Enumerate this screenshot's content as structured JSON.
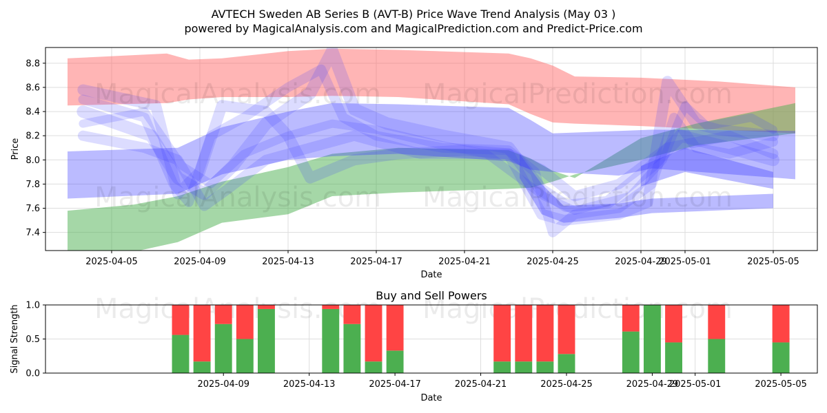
{
  "title_line1": "AVTECH Sweden AB Series B (AVT-B) Price Wave Trend Analysis (May 03 )",
  "title_line2": "powered by MagicalAnalysis.com and MagicalPrediction.com and Predict-Price.com",
  "watermarks": [
    "MagicalAnalysis.com",
    "MagicalPrediction.com"
  ],
  "colors": {
    "red_band": "#ff6b6b",
    "green_band": "#4caf50",
    "blue_band": "#3b3bff",
    "buy": "#4caf50",
    "sell": "#ff4444"
  },
  "chart_data": [
    {
      "type": "area",
      "title": "Price Wave Trend Analysis",
      "xlabel": "Date",
      "ylabel": "Price",
      "xlim": [
        "2025-04-02",
        "2025-05-07"
      ],
      "ylim": [
        7.25,
        8.93
      ],
      "x_ticks": [
        "2025-04-05",
        "2025-04-09",
        "2025-04-13",
        "2025-04-17",
        "2025-04-21",
        "2025-04-25",
        "2025-04-29",
        "2025-05-01",
        "2025-05-05"
      ],
      "y_ticks": [
        7.4,
        7.6,
        7.8,
        8.0,
        8.2,
        8.4,
        8.6,
        8.8
      ],
      "grid": true,
      "series": [
        {
          "name": "red-band",
          "color": "red",
          "upper": [
            [
              0,
              8.84
            ],
            [
              4.5,
              8.88
            ],
            [
              5.5,
              8.83
            ],
            [
              7,
              8.84
            ],
            [
              10,
              8.9
            ],
            [
              12,
              8.92
            ],
            [
              15,
              8.91
            ],
            [
              20,
              8.88
            ],
            [
              21,
              8.84
            ],
            [
              22,
              8.78
            ],
            [
              23,
              8.69
            ],
            [
              26,
              8.68
            ],
            [
              29.5,
              8.65
            ],
            [
              33,
              8.6
            ]
          ],
          "lower": [
            [
              0,
              8.45
            ],
            [
              4.5,
              8.47
            ],
            [
              5.5,
              8.5
            ],
            [
              7,
              8.52
            ],
            [
              10,
              8.52
            ],
            [
              12,
              8.53
            ],
            [
              15,
              8.52
            ],
            [
              20,
              8.46
            ],
            [
              21,
              8.38
            ],
            [
              22,
              8.31
            ],
            [
              23,
              8.3
            ],
            [
              26,
              8.28
            ],
            [
              29.5,
              8.25
            ],
            [
              33,
              8.22
            ]
          ]
        },
        {
          "name": "green-band",
          "color": "green",
          "upper": [
            [
              0,
              7.58
            ],
            [
              3,
              7.63
            ],
            [
              5,
              7.7
            ],
            [
              7,
              7.82
            ],
            [
              10,
              7.94
            ],
            [
              12,
              8.05
            ],
            [
              15,
              8.1
            ],
            [
              20,
              8.08
            ],
            [
              21,
              8.01
            ],
            [
              22,
              7.91
            ],
            [
              23,
              7.85
            ],
            [
              26,
              8.18
            ],
            [
              28.5,
              8.3
            ],
            [
              33,
              8.47
            ]
          ],
          "lower": [
            [
              0,
              7.2
            ],
            [
              3,
              7.24
            ],
            [
              5,
              7.32
            ],
            [
              7,
              7.48
            ],
            [
              10,
              7.55
            ],
            [
              12,
              7.7
            ],
            [
              15,
              7.73
            ],
            [
              20,
              7.76
            ],
            [
              21,
              7.77
            ],
            [
              22,
              7.82
            ],
            [
              23,
              7.88
            ],
            [
              26,
              8.0
            ],
            [
              28.5,
              8.12
            ],
            [
              33,
              8.22
            ]
          ]
        },
        {
          "name": "blue-band-main",
          "color": "blue",
          "upper": [
            [
              0,
              8.07
            ],
            [
              5,
              8.1
            ],
            [
              7,
              8.27
            ],
            [
              10,
              8.4
            ],
            [
              12,
              8.47
            ],
            [
              15,
              8.46
            ],
            [
              20,
              8.43
            ],
            [
              21,
              8.33
            ],
            [
              22,
              8.22
            ],
            [
              25,
              8.24
            ],
            [
              26.5,
              8.25
            ],
            [
              33,
              8.24
            ]
          ],
          "lower": [
            [
              0,
              7.68
            ],
            [
              5,
              7.72
            ],
            [
              7,
              7.88
            ],
            [
              10,
              8.0
            ],
            [
              12,
              8.03
            ],
            [
              15,
              8.05
            ],
            [
              20,
              7.99
            ],
            [
              21,
              7.92
            ],
            [
              22,
              7.9
            ],
            [
              25,
              7.87
            ],
            [
              26.5,
              7.93
            ],
            [
              33,
              7.84
            ]
          ]
        },
        {
          "name": "blue-band-low",
          "color": "blue",
          "upper": [
            [
              20.5,
              8.05
            ],
            [
              21.5,
              7.8
            ],
            [
              22.5,
              7.62
            ],
            [
              25,
              7.64
            ],
            [
              26.5,
              7.68
            ],
            [
              32,
              7.72
            ]
          ],
          "lower": [
            [
              20.5,
              7.85
            ],
            [
              21.5,
              7.55
            ],
            [
              22.5,
              7.48
            ],
            [
              25,
              7.52
            ],
            [
              26.5,
              7.56
            ],
            [
              32,
              7.6
            ]
          ]
        },
        {
          "name": "blue-band-right",
          "color": "blue",
          "upper": [
            [
              26,
              7.95
            ],
            [
              28,
              8.1
            ],
            [
              32,
              7.9
            ]
          ],
          "lower": [
            [
              26,
              7.78
            ],
            [
              28,
              7.9
            ],
            [
              32,
              7.76
            ]
          ]
        }
      ],
      "wave_lines": [
        [
          [
            0.7,
            8.58
          ],
          [
            4,
            8.45
          ],
          [
            5,
            7.72
          ],
          [
            6,
            7.9
          ],
          [
            7,
            8.45
          ],
          [
            9,
            8.4
          ],
          [
            10,
            8.2
          ],
          [
            11,
            7.85
          ],
          [
            13,
            8.0
          ],
          [
            15,
            8.05
          ],
          [
            18,
            8.08
          ],
          [
            20,
            8.05
          ],
          [
            21.5,
            7.55
          ],
          [
            22.5,
            7.5
          ],
          [
            25,
            7.55
          ],
          [
            26.3,
            7.65
          ],
          [
            27.2,
            8.65
          ],
          [
            28.5,
            8.3
          ],
          [
            29.5,
            8.25
          ],
          [
            32,
            8.2
          ]
        ],
        [
          [
            0.7,
            8.5
          ],
          [
            3.5,
            8.35
          ],
          [
            4.8,
            7.8
          ],
          [
            5.5,
            7.65
          ],
          [
            6.5,
            8.2
          ],
          [
            8,
            8.35
          ],
          [
            10,
            8.6
          ],
          [
            11.5,
            8.75
          ],
          [
            12.5,
            8.35
          ],
          [
            14,
            8.2
          ],
          [
            17,
            8.1
          ],
          [
            20,
            8.08
          ],
          [
            21.2,
            7.9
          ],
          [
            22,
            7.4
          ],
          [
            23,
            7.55
          ],
          [
            25,
            7.6
          ],
          [
            26.5,
            7.8
          ],
          [
            27.5,
            8.35
          ],
          [
            28.5,
            8.1
          ],
          [
            30,
            8.05
          ],
          [
            32,
            8.15
          ]
        ],
        [
          [
            0.7,
            8.4
          ],
          [
            3.8,
            8.2
          ],
          [
            5,
            7.85
          ],
          [
            6.2,
            7.72
          ],
          [
            7.5,
            7.95
          ],
          [
            9,
            8.3
          ],
          [
            11,
            8.55
          ],
          [
            12,
            8.9
          ],
          [
            13,
            8.42
          ],
          [
            14.5,
            8.3
          ],
          [
            17,
            8.2
          ],
          [
            20,
            8.1
          ],
          [
            21.5,
            7.75
          ],
          [
            22.6,
            7.62
          ],
          [
            24.5,
            7.65
          ],
          [
            26.5,
            7.95
          ],
          [
            27.8,
            8.2
          ],
          [
            30,
            8.1
          ],
          [
            32,
            8.0
          ]
        ],
        [
          [
            0.7,
            8.3
          ],
          [
            3.5,
            8.4
          ],
          [
            5.2,
            7.95
          ],
          [
            6.5,
            7.8
          ],
          [
            8,
            8.05
          ],
          [
            10,
            8.2
          ],
          [
            12,
            8.3
          ],
          [
            14,
            8.25
          ],
          [
            17,
            8.12
          ],
          [
            19,
            8.05
          ],
          [
            21.6,
            7.7
          ],
          [
            23,
            7.58
          ],
          [
            25.5,
            7.7
          ],
          [
            27,
            8.0
          ],
          [
            28,
            8.45
          ],
          [
            29,
            8.28
          ],
          [
            31,
            8.35
          ],
          [
            32,
            8.25
          ]
        ],
        [
          [
            0.7,
            8.2
          ],
          [
            3.5,
            8.1
          ],
          [
            5,
            8.0
          ],
          [
            6.2,
            7.62
          ],
          [
            7.2,
            7.75
          ],
          [
            9,
            8.0
          ],
          [
            11,
            8.1
          ],
          [
            13,
            8.2
          ],
          [
            16,
            8.05
          ],
          [
            20,
            8.05
          ],
          [
            21.5,
            7.92
          ],
          [
            23,
            7.7
          ],
          [
            25,
            7.8
          ],
          [
            27.2,
            8.1
          ],
          [
            30,
            8.2
          ],
          [
            32,
            8.05
          ]
        ]
      ]
    },
    {
      "type": "bar",
      "title": "Buy and Sell Powers",
      "xlabel": "Date",
      "ylabel": "Signal Strength",
      "ylim": [
        0,
        1
      ],
      "y_ticks": [
        "0.0",
        "0.5",
        "1.0"
      ],
      "x_ticks": [
        "2025-04-09",
        "2025-04-13",
        "2025-04-17",
        "2025-04-21",
        "2025-04-25",
        "2025-04-29",
        "2025-05-01",
        "2025-05-05"
      ],
      "bars": [
        {
          "date": "2025-04-07",
          "buy": 0.56
        },
        {
          "date": "2025-04-08",
          "buy": 0.17
        },
        {
          "date": "2025-04-09",
          "buy": 0.72
        },
        {
          "date": "2025-04-10",
          "buy": 0.5
        },
        {
          "date": "2025-04-11",
          "buy": 0.94
        },
        {
          "date": "2025-04-14",
          "buy": 0.94
        },
        {
          "date": "2025-04-15",
          "buy": 0.72
        },
        {
          "date": "2025-04-16",
          "buy": 0.17
        },
        {
          "date": "2025-04-17",
          "buy": 0.33
        },
        {
          "date": "2025-04-22",
          "buy": 0.17
        },
        {
          "date": "2025-04-23",
          "buy": 0.17
        },
        {
          "date": "2025-04-24",
          "buy": 0.17
        },
        {
          "date": "2025-04-25",
          "buy": 0.28
        },
        {
          "date": "2025-04-28",
          "buy": 0.61
        },
        {
          "date": "2025-04-29",
          "buy": 1.0
        },
        {
          "date": "2025-04-30",
          "buy": 0.45
        },
        {
          "date": "2025-05-02",
          "buy": 0.5
        },
        {
          "date": "2025-05-05",
          "buy": 0.45
        }
      ]
    }
  ]
}
